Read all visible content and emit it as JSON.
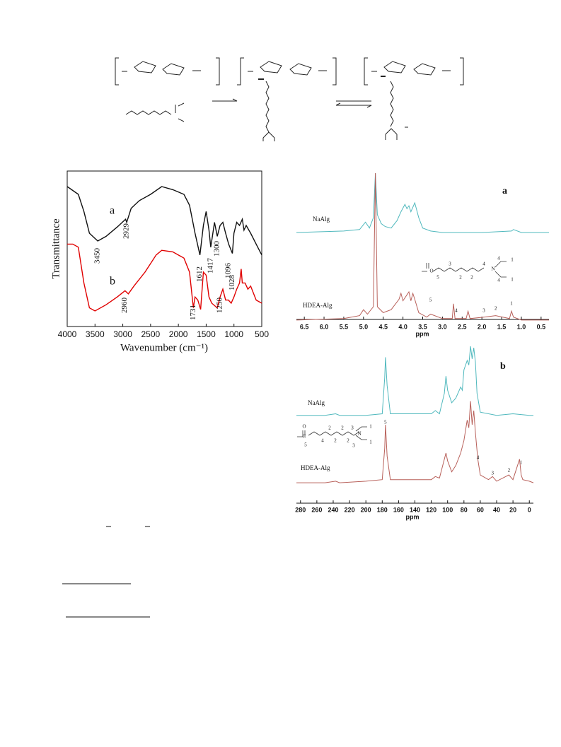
{
  "chart_data": [
    {
      "type": "line",
      "frame": true,
      "xlabel": "Wavenumber (cm⁻¹)",
      "ylabel": "Transmittance",
      "xlim": [
        4000,
        500
      ],
      "xticks": [
        4000,
        3500,
        3000,
        2500,
        2000,
        1500,
        1000,
        500
      ],
      "ylim": [
        0,
        100
      ],
      "series": [
        {
          "name": "a",
          "color": "#111111",
          "x": [
            4000,
            3800,
            3700,
            3600,
            3450,
            3300,
            3100,
            2950,
            2929,
            2850,
            2700,
            2500,
            2300,
            2100,
            1900,
            1800,
            1700,
            1612,
            1550,
            1500,
            1450,
            1417,
            1380,
            1350,
            1300,
            1250,
            1200,
            1150,
            1096,
            1028,
            1000,
            950,
            900,
            850,
            820,
            780,
            700,
            600,
            500
          ],
          "values": [
            90,
            85,
            74,
            60,
            55,
            58,
            64,
            69,
            67,
            76,
            81,
            85,
            90,
            88,
            85,
            78,
            60,
            46,
            65,
            74,
            62,
            51,
            60,
            67,
            58,
            65,
            67,
            60,
            53,
            47,
            60,
            67,
            65,
            69,
            62,
            65,
            60,
            53,
            46
          ]
        },
        {
          "name": "b",
          "color": "#e00000",
          "x": [
            4000,
            3900,
            3800,
            3700,
            3600,
            3500,
            3300,
            3100,
            2960,
            2900,
            2800,
            2600,
            2400,
            2300,
            2100,
            1900,
            1800,
            1731,
            1700,
            1650,
            1600,
            1550,
            1500,
            1450,
            1400,
            1300,
            1250,
            1200,
            1150,
            1100,
            1050,
            1000,
            950,
            900,
            870,
            850,
            800,
            750,
            700,
            600,
            500
          ],
          "values": [
            53,
            53,
            51,
            28,
            12,
            10,
            14,
            19,
            23,
            21,
            26,
            35,
            46,
            49,
            48,
            44,
            35,
            12,
            19,
            17,
            11,
            35,
            33,
            19,
            15,
            12,
            19,
            24,
            17,
            17,
            15,
            19,
            24,
            28,
            37,
            28,
            28,
            24,
            26,
            17,
            15
          ]
        }
      ],
      "peak_labels": [
        {
          "x": 3450,
          "label": "3450"
        },
        {
          "x": 2929,
          "label": "2929"
        },
        {
          "x": 1612,
          "label": "1612"
        },
        {
          "x": 1417,
          "label": "1417"
        },
        {
          "x": 1300,
          "label": "1300"
        },
        {
          "x": 1096,
          "label": "1096"
        },
        {
          "x": 1028,
          "label": "1028"
        },
        {
          "x": 2960,
          "label": "2960"
        },
        {
          "x": 1731,
          "label": "1731"
        },
        {
          "x": 1250,
          "label": "1250"
        }
      ]
    },
    {
      "type": "line",
      "frame": false,
      "panel": "a",
      "xlabel": "ppm",
      "xlim": [
        6.7,
        0.3
      ],
      "xticks": [
        {
          "value": 6.5,
          "label": "6.5"
        },
        {
          "value": 6,
          "label": "6.0"
        },
        {
          "value": 5.5,
          "label": "5.5"
        },
        {
          "value": 5,
          "label": "5.0"
        },
        {
          "value": 4.5,
          "label": "4.5"
        },
        {
          "value": 4,
          "label": "4.0"
        },
        {
          "value": 3.5,
          "label": "3.5"
        },
        {
          "value": 3,
          "label": "3.0"
        },
        {
          "value": 2.5,
          "label": "2.5"
        },
        {
          "value": 2,
          "label": "2.0"
        },
        {
          "value": 1.5,
          "label": "1.5"
        },
        {
          "value": 1,
          "label": "1.0"
        },
        {
          "value": 0.5,
          "label": "0.5"
        }
      ],
      "ylim": [
        0,
        100
      ],
      "series": [
        {
          "name": "NaAlg",
          "color": "#4fb8bd",
          "x": [
            6.7,
            5.5,
            5.1,
            4.95,
            4.85,
            4.75,
            4.7,
            4.65,
            4.55,
            4.45,
            4.3,
            4.15,
            4.05,
            3.95,
            3.9,
            3.85,
            3.8,
            3.7,
            3.6,
            3.5,
            3.3,
            3.0,
            2.0,
            1.25,
            1.2,
            1.0,
            0.3
          ],
          "values": [
            60,
            61,
            62,
            67,
            63,
            70,
            100,
            72,
            66,
            64,
            63,
            68,
            74,
            79,
            76,
            78,
            74,
            80,
            70,
            63,
            61,
            60,
            60,
            61,
            62,
            60,
            60
          ]
        },
        {
          "name": "HDEA-Alg",
          "color": "#b8605a",
          "x": [
            6.7,
            5.5,
            5.1,
            5.0,
            4.9,
            4.75,
            4.7,
            4.65,
            4.5,
            4.3,
            4.1,
            4.05,
            4.0,
            3.9,
            3.85,
            3.8,
            3.75,
            3.7,
            3.6,
            3.4,
            3.3,
            3.0,
            2.75,
            2.72,
            2.68,
            2.4,
            2.35,
            2.3,
            1.95,
            1.65,
            1.3,
            1.25,
            1.2,
            1.0,
            0.3
          ],
          "values": [
            1,
            2,
            4,
            8,
            5,
            10,
            100,
            10,
            6,
            8,
            15,
            19,
            14,
            18,
            20,
            14,
            19,
            15,
            6,
            3,
            5,
            2,
            2,
            12,
            2,
            2,
            7,
            2,
            3,
            4,
            2,
            7,
            3,
            1,
            1
          ]
        }
      ],
      "peak_labels": [
        {
          "x": 3.3,
          "label": "5"
        },
        {
          "x": 2.65,
          "label": "4"
        },
        {
          "x": 1.95,
          "label": "3"
        },
        {
          "x": 1.65,
          "label": "2"
        },
        {
          "x": 1.25,
          "label": "1"
        }
      ],
      "structure_labels": [
        "O",
        "5",
        "3",
        "2",
        "2",
        "4",
        "N",
        "4",
        "1",
        "4",
        "1"
      ]
    },
    {
      "type": "line",
      "frame": false,
      "panel": "b",
      "xlabel": "ppm",
      "xlim": [
        285,
        -5
      ],
      "xticks": [
        280,
        260,
        240,
        220,
        200,
        180,
        160,
        140,
        120,
        100,
        80,
        60,
        40,
        20,
        0
      ],
      "ylim": [
        0,
        100
      ],
      "series": [
        {
          "name": "NaAlg",
          "color": "#4fb8bd",
          "x": [
            285,
            250,
            237,
            232,
            200,
            180,
            177,
            176,
            174,
            170,
            120,
            115,
            110,
            104,
            102,
            100,
            95,
            90,
            84,
            82,
            80,
            76,
            74,
            72,
            70,
            68,
            66,
            64,
            60,
            40,
            20,
            0,
            -5
          ],
          "values": [
            56,
            56,
            57,
            56,
            56,
            57,
            80,
            93,
            75,
            57,
            57,
            59,
            57,
            70,
            81,
            72,
            64,
            67,
            74,
            72,
            85,
            91,
            88,
            100,
            92,
            99,
            90,
            70,
            58,
            56,
            57,
            56,
            56
          ]
        },
        {
          "name": "HDEA-Alg",
          "color": "#b8605a",
          "x": [
            285,
            250,
            237,
            232,
            200,
            180,
            177,
            176,
            174,
            170,
            120,
            115,
            110,
            104,
            102,
            100,
            95,
            90,
            84,
            80,
            76,
            74,
            72,
            70,
            68,
            66,
            63,
            60,
            50,
            45,
            40,
            25,
            20,
            12,
            10,
            8,
            0,
            -5
          ],
          "values": [
            13,
            13,
            14,
            13,
            14,
            15,
            35,
            50,
            30,
            15,
            15,
            17,
            16,
            28,
            32,
            27,
            20,
            24,
            32,
            40,
            53,
            48,
            65,
            50,
            59,
            45,
            28,
            18,
            15,
            17,
            14,
            18,
            15,
            28,
            18,
            15,
            14,
            13
          ]
        }
      ],
      "peak_labels": [
        {
          "x": 176,
          "label": "5"
        },
        {
          "x": 63,
          "label": "4"
        },
        {
          "x": 45,
          "label": "3"
        },
        {
          "x": 25,
          "label": "2"
        },
        {
          "x": 10,
          "label": "1"
        }
      ],
      "structure_labels": [
        "O",
        "C",
        "5",
        "4",
        "2",
        "2",
        "2",
        "2",
        "3",
        "3",
        "N",
        "1",
        "1"
      ]
    }
  ]
}
